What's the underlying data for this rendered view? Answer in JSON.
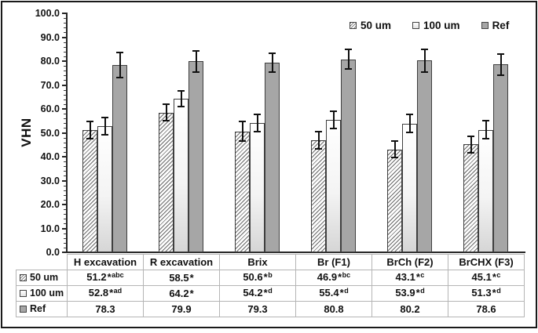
{
  "figure": {
    "ylabel": "VHN",
    "legend": [
      {
        "label": "50 um",
        "style": "hatched"
      },
      {
        "label": "100 um",
        "style": "light"
      },
      {
        "label": "Ref",
        "style": "ref"
      }
    ],
    "colors": {
      "ref_fill": "#a6a6a6",
      "light_fill": "#f0f0f0",
      "bar_border": "#3f3f3f",
      "axis": "#262626",
      "error_bar": "#111111",
      "table_border": "#b5b5b5",
      "frame_border": "#1a1a1a",
      "text": "#111111"
    }
  },
  "chart_data": {
    "type": "bar",
    "title": "",
    "xlabel": "",
    "ylabel": "VHN",
    "ylim": [
      0,
      100
    ],
    "ytick_step": 10,
    "ytick_labels": [
      "0.0",
      "10.0",
      "20.0",
      "30.0",
      "40.0",
      "50.0",
      "60.0",
      "70.0",
      "80.0",
      "90.0",
      "100.0"
    ],
    "grid": false,
    "legend_position": "top-right",
    "categories": [
      "H excavation",
      "R excavation",
      "Brix",
      "Br (F1)",
      "BrCh (F2)",
      "BrCHX (F3)"
    ],
    "series": [
      {
        "name": "50 um",
        "style": "hatched",
        "values": [
          51.2,
          58.5,
          50.6,
          46.9,
          43.1,
          45.1
        ],
        "errors": [
          3.5,
          3.5,
          4.0,
          3.7,
          3.4,
          3.5
        ]
      },
      {
        "name": "100 um",
        "style": "light",
        "values": [
          52.8,
          64.2,
          54.2,
          55.4,
          53.9,
          51.3
        ],
        "errors": [
          3.7,
          3.3,
          3.6,
          3.5,
          3.8,
          3.8
        ]
      },
      {
        "name": "Ref",
        "style": "ref",
        "values": [
          78.3,
          79.9,
          79.3,
          80.8,
          80.2,
          78.6
        ],
        "errors": [
          5.2,
          4.5,
          4.0,
          4.2,
          4.8,
          4.4
        ]
      }
    ]
  },
  "table": {
    "columns": [
      "H excavation",
      "R excavation",
      "Brix",
      "Br (F1)",
      "BrCh (F2)",
      "BrCHX (F3)"
    ],
    "row_headers": [
      "50 um",
      "100 um",
      "Ref"
    ],
    "rows": [
      [
        {
          "value": "51.2",
          "mark": "*",
          "sup": "abc"
        },
        {
          "value": "58.5",
          "mark": "*",
          "sup": ""
        },
        {
          "value": "50.6",
          "mark": "*",
          "sup": "b"
        },
        {
          "value": "46.9",
          "mark": "*",
          "sup": "bc"
        },
        {
          "value": "43.1",
          "mark": "*",
          "sup": "c"
        },
        {
          "value": "45.1",
          "mark": "*",
          "sup": "c"
        }
      ],
      [
        {
          "value": "52.8",
          "mark": "*",
          "sup": "ad"
        },
        {
          "value": "64.2",
          "mark": "*",
          "sup": ""
        },
        {
          "value": "54.2",
          "mark": "*",
          "sup": "d"
        },
        {
          "value": "55.4",
          "mark": "*",
          "sup": "d"
        },
        {
          "value": "53.9",
          "mark": "*",
          "sup": "d"
        },
        {
          "value": "51.3",
          "mark": "*",
          "sup": "d"
        }
      ],
      [
        {
          "value": "78.3",
          "mark": "",
          "sup": ""
        },
        {
          "value": "79.9",
          "mark": "",
          "sup": ""
        },
        {
          "value": "79.3",
          "mark": "",
          "sup": ""
        },
        {
          "value": "80.8",
          "mark": "",
          "sup": ""
        },
        {
          "value": "80.2",
          "mark": "",
          "sup": ""
        },
        {
          "value": "78.6",
          "mark": "",
          "sup": ""
        }
      ]
    ]
  }
}
